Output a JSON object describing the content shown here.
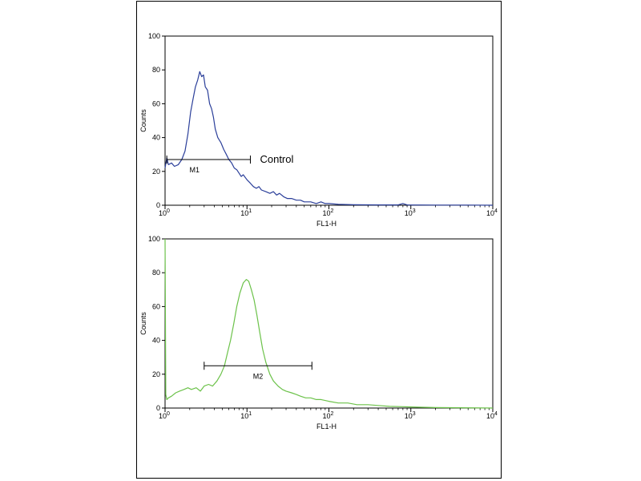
{
  "chart_data": [
    {
      "type": "line",
      "xscale": "log",
      "xlim": [
        1,
        10000
      ],
      "ylim": [
        0,
        100
      ],
      "xlabel": "FL1-H",
      "ylabel": "Counts",
      "y_ticks": [
        "0",
        "20",
        "40",
        "60",
        "80",
        "100"
      ],
      "x_tick_values": [
        1,
        10,
        100,
        1000,
        10000
      ],
      "x_tick_bases": [
        "10",
        "10",
        "10",
        "10",
        "10"
      ],
      "x_tick_exps": [
        "0",
        "1",
        "2",
        "3",
        "4"
      ],
      "color": "#2b3f9a",
      "annotation": "Control",
      "marker": {
        "label": "M1",
        "x_start": 1.05,
        "x_end": 11,
        "y": 27
      },
      "series": [
        {
          "x": [
            1,
            1.05,
            1.1,
            1.2,
            1.3,
            1.45,
            1.6,
            1.75,
            1.9,
            2.05,
            2.2,
            2.35,
            2.5,
            2.65,
            2.8,
            2.95,
            3.1,
            3.3,
            3.5,
            3.7,
            3.9,
            4.1,
            4.4,
            4.8,
            5.2,
            5.6,
            6,
            6.5,
            7,
            7.5,
            8,
            8.5,
            9,
            10,
            11,
            12,
            13,
            14,
            15,
            17,
            19,
            21,
            23,
            25,
            28,
            31,
            35,
            40,
            45,
            50,
            60,
            70,
            80,
            90,
            100,
            130,
            200,
            400,
            700,
            800,
            900,
            2000,
            5000,
            10000
          ],
          "y": [
            22,
            28,
            24,
            25,
            23,
            24,
            27,
            32,
            42,
            55,
            63,
            70,
            74,
            79,
            76,
            77,
            70,
            68,
            60,
            57,
            52,
            45,
            40,
            37,
            33,
            30,
            27,
            25,
            22,
            21,
            19,
            17,
            18,
            15,
            13,
            11,
            10,
            11,
            9,
            8,
            7,
            8,
            6,
            7,
            5,
            4,
            4,
            3,
            3,
            2,
            2,
            1,
            2,
            1,
            1,
            0.5,
            0.3,
            0.2,
            0.2,
            1,
            0.2,
            0.1,
            0.1,
            0
          ]
        }
      ]
    },
    {
      "type": "line",
      "xscale": "log",
      "xlim": [
        1,
        10000
      ],
      "ylim": [
        0,
        100
      ],
      "xlabel": "FL1-H",
      "ylabel": "Counts",
      "y_ticks": [
        "0",
        "20",
        "40",
        "60",
        "80",
        "100"
      ],
      "x_tick_values": [
        1,
        10,
        100,
        1000,
        10000
      ],
      "x_tick_bases": [
        "10",
        "10",
        "10",
        "10",
        "10"
      ],
      "x_tick_exps": [
        "0",
        "1",
        "2",
        "3",
        "4"
      ],
      "color": "#6cc24a",
      "annotation": "",
      "marker": {
        "label": "M2",
        "x_start": 3,
        "x_end": 62,
        "y": 25
      },
      "series": [
        {
          "x": [
            1,
            1.02,
            1.05,
            1.1,
            1.2,
            1.35,
            1.5,
            1.7,
            1.9,
            2.1,
            2.4,
            2.7,
            3,
            3.4,
            3.8,
            4.3,
            4.8,
            5.3,
            5.8,
            6.3,
            6.9,
            7.5,
            8.2,
            9,
            9.8,
            10.5,
            11.3,
            12.2,
            13.2,
            14.3,
            15.5,
            17,
            19,
            21,
            24,
            27,
            30,
            35,
            40,
            45,
            52,
            60,
            70,
            80,
            100,
            130,
            170,
            220,
            300,
            400,
            550,
            800,
            1200,
            2000,
            4000,
            10000
          ],
          "y": [
            100,
            8,
            5,
            6,
            7,
            9,
            10,
            11,
            12,
            11,
            12,
            10,
            13,
            14,
            13,
            16,
            20,
            25,
            33,
            40,
            50,
            60,
            68,
            74,
            76,
            75,
            70,
            64,
            55,
            45,
            35,
            27,
            20,
            16,
            13,
            11,
            10,
            9,
            8,
            7,
            6,
            6,
            5,
            5,
            4,
            3,
            3,
            2,
            2,
            1.5,
            1,
            0.8,
            0.5,
            0.3,
            0.2,
            0
          ]
        }
      ]
    }
  ]
}
